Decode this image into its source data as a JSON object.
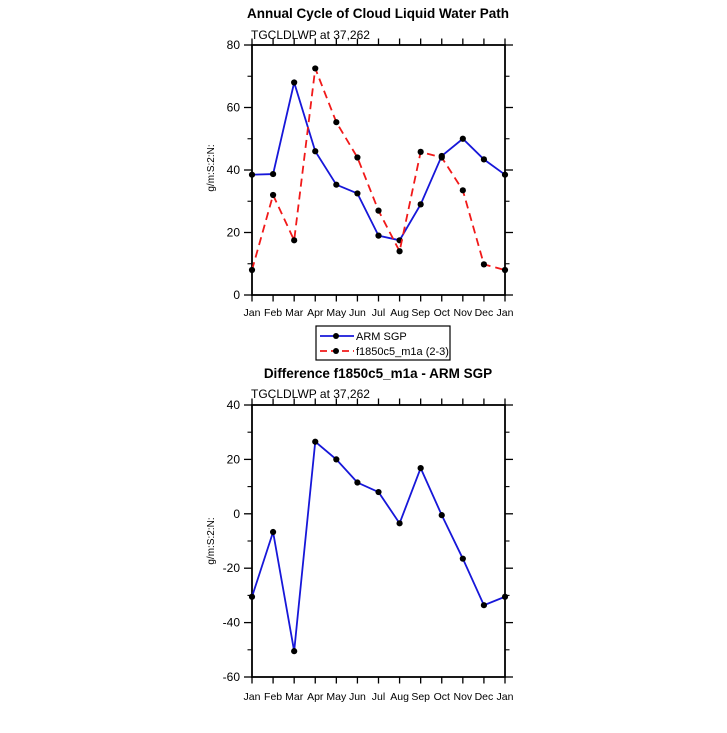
{
  "chart_data": [
    {
      "type": "line",
      "title": "Annual Cycle of Cloud Liquid Water Path",
      "subtitle": "TGCLDLWP at 37,262",
      "ylabel": "g/m:S:2:N:",
      "xlabel": "",
      "categories": [
        "Jan",
        "Feb",
        "Mar",
        "Apr",
        "May",
        "Jun",
        "Jul",
        "Aug",
        "Sep",
        "Oct",
        "Nov",
        "Dec",
        "Jan"
      ],
      "ylim": [
        0,
        80
      ],
      "yticks_major": [
        0,
        20,
        40,
        60,
        80
      ],
      "yticks_minor": [
        10,
        30,
        50,
        70
      ],
      "grid": false,
      "legend_position": "below-right",
      "series": [
        {
          "name": "ARM SGP",
          "color": "#1717d9",
          "line": "solid",
          "marker": "circle",
          "marker_color": "#000000",
          "values": [
            38.5,
            38.7,
            68.0,
            46.0,
            35.3,
            32.5,
            19.0,
            17.5,
            29.0,
            44.5,
            50.0,
            43.4,
            38.5
          ]
        },
        {
          "name": "f1850c5_m1a (2-3)",
          "color": "#f11919",
          "line": "dashed",
          "marker": "circle",
          "marker_color": "#000000",
          "values": [
            8.0,
            32.0,
            17.5,
            72.5,
            55.3,
            44.0,
            27.0,
            14.0,
            45.8,
            44.0,
            33.5,
            9.8,
            8.0
          ]
        }
      ]
    },
    {
      "type": "line",
      "title": "Difference f1850c5_m1a - ARM SGP",
      "subtitle": "TGCLDLWP at 37,262",
      "ylabel": "g/m:S:2:N:",
      "xlabel": "",
      "categories": [
        "Jan",
        "Feb",
        "Mar",
        "Apr",
        "May",
        "Jun",
        "Jul",
        "Aug",
        "Sep",
        "Oct",
        "Nov",
        "Dec",
        "Jan"
      ],
      "ylim": [
        -60,
        40
      ],
      "yticks_major": [
        -60,
        -40,
        -20,
        0,
        20,
        40
      ],
      "yticks_minor": [
        -50,
        -30,
        -10,
        10,
        30
      ],
      "grid": false,
      "legend_position": "none",
      "series": [
        {
          "name": "f1850c5_m1a - ARM SGP",
          "color": "#1717d9",
          "line": "solid",
          "marker": "circle",
          "marker_color": "#000000",
          "values": [
            -30.5,
            -6.7,
            -50.5,
            26.5,
            20.0,
            11.5,
            8.0,
            -3.5,
            16.8,
            -0.5,
            -16.5,
            -33.6,
            -30.5
          ]
        }
      ]
    }
  ],
  "colors": {
    "axis": "#000000",
    "background": "#ffffff"
  }
}
